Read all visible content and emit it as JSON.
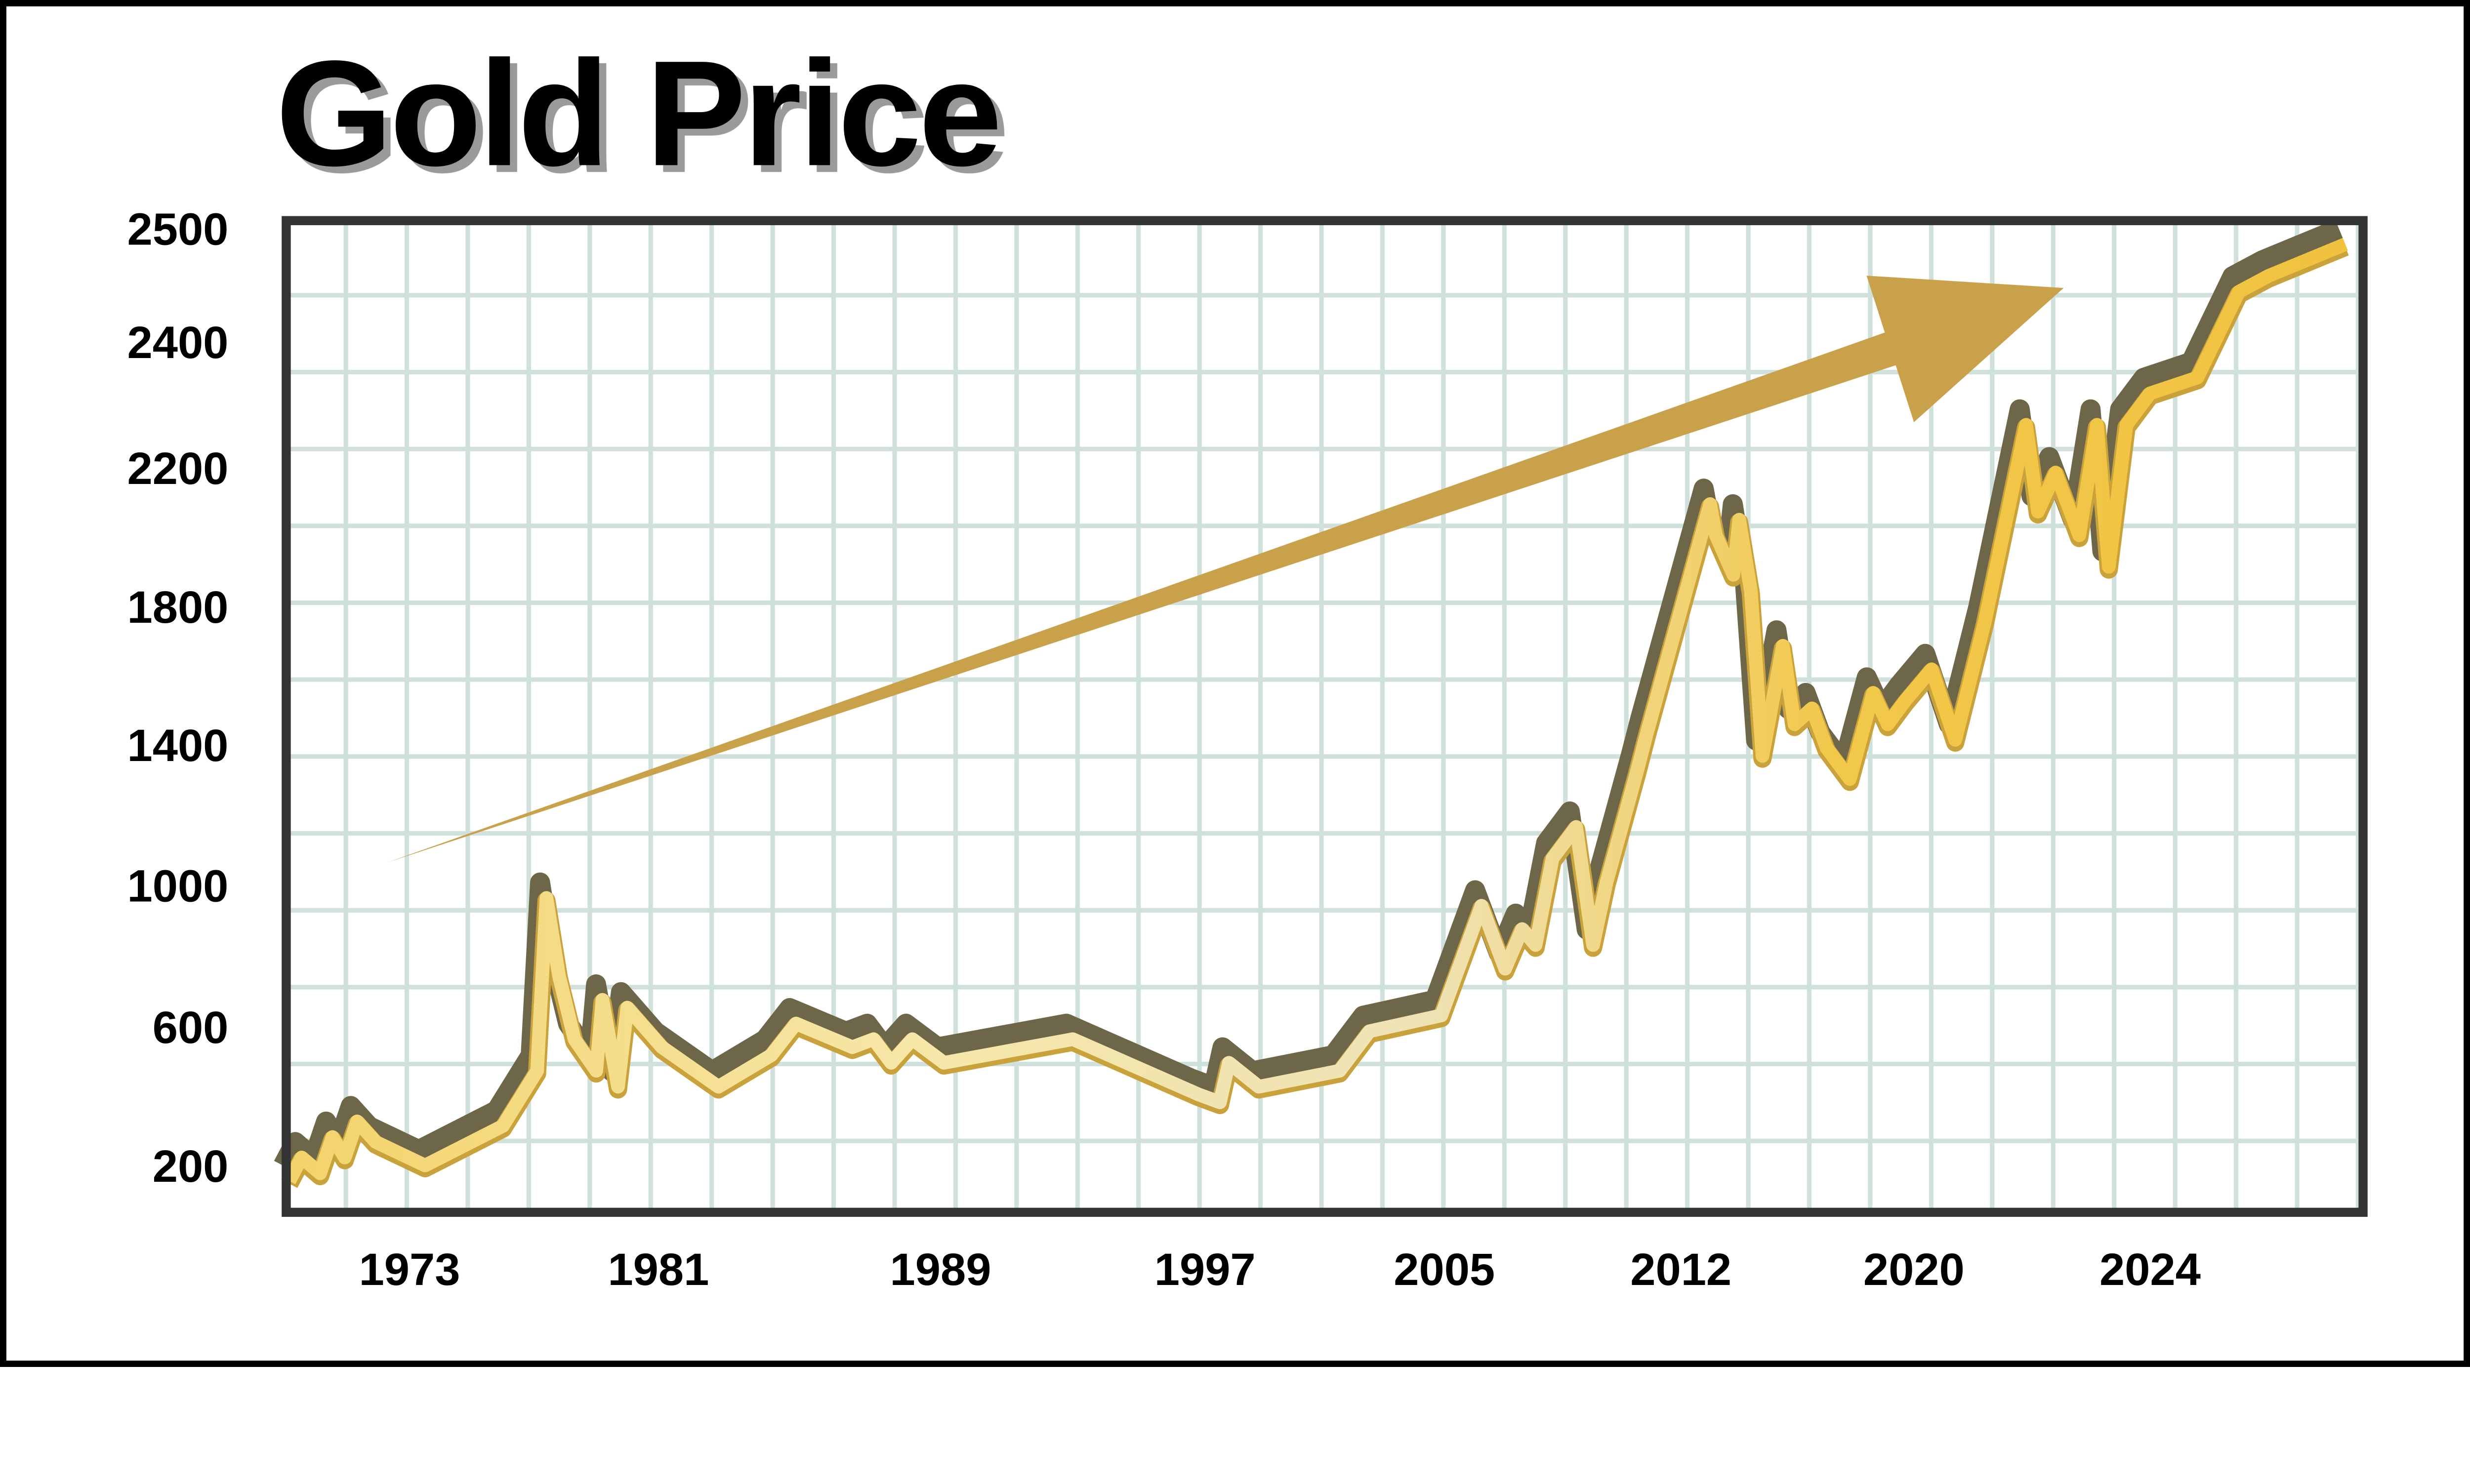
{
  "chart_data": {
    "type": "line",
    "title": "Gold Price",
    "xlabel": "",
    "ylabel": "",
    "x_ticks": [
      "1973",
      "1981",
      "1989",
      "1997",
      "2005",
      "2012",
      "2020",
      "2024"
    ],
    "y_ticks": [
      "2500",
      "2400",
      "2200",
      "1800",
      "1400",
      "1000",
      "600",
      "200"
    ],
    "grid": true,
    "legend": "none",
    "colors": {
      "line": "#f2c84b",
      "line_shadow": "#6e6648",
      "arrow": "#c9a14a",
      "grid": "#d0e1db",
      "frame": "#333333"
    },
    "annotation": "upward trend arrow",
    "series": [
      {
        "x": [
          1969.1,
          1969.5,
          1970.1,
          1970.5,
          1970.9,
          1971.3,
          1971.9,
          1973.5,
          1976.0,
          1977.1,
          1977.4,
          1977.8,
          1978.3,
          1979.0,
          1979.2,
          1979.7,
          1980.0,
          1981.1,
          1982.7,
          1984.2,
          1984.9,
          1986.5,
          1987.1,
          1987.6,
          1988.2,
          1989.1,
          1993.0,
          1996.8,
          1997.5,
          1997.8,
          1998.8,
          2001.5,
          2002.5,
          2004.9,
          2006.1,
          2006.8,
          2007.3,
          2007.7,
          2008.2,
          2008.9,
          2009.4,
          2009.8,
          2010.7,
          2011.0,
          2013.0,
          2013.2,
          2013.8,
          2014.0,
          2014.4,
          2014.8,
          2015.5,
          2015.9,
          2016.5,
          2017.0,
          2017.8,
          2018.6,
          2019.1,
          2019.7,
          2020.3,
          2020.7,
          2021.2,
          2021.9,
          2022.1,
          2022.4,
          2022.8,
          2023.1,
          2023.3,
          2023.6,
          2024.0,
          2024.8,
          2025.5,
          2026.0,
          2027.3
        ],
        "y": [
          155,
          223,
          177,
          282,
          223,
          327,
          268,
          200,
          314,
          473,
          964,
          745,
          564,
          473,
          676,
          427,
          654,
          541,
          427,
          518,
          609,
          541,
          564,
          496,
          564,
          496,
          564,
          405,
          382,
          496,
          427,
          473,
          587,
          632,
          942,
          764,
          876,
          831,
          1076,
          1166,
          831,
          1009,
          1324,
          1436,
          2095,
          2005,
          1891,
          2050,
          1845,
          1368,
          1686,
          1459,
          1505,
          1391,
          1302,
          1550,
          1459,
          1527,
          1618,
          1414,
          1755,
          2268,
          2073,
          2186,
          2005,
          2268,
          1914,
          2268,
          2318,
          2343,
          2444,
          2458,
          2486
        ]
      }
    ]
  }
}
